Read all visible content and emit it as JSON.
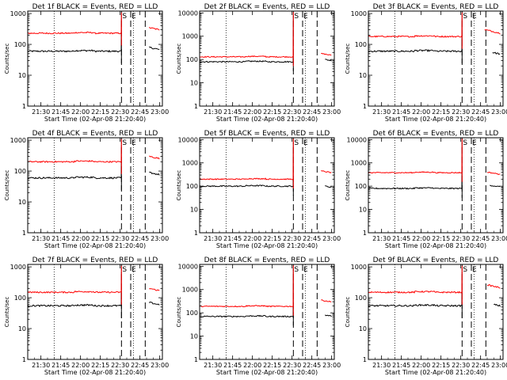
{
  "chart_data": {
    "type": "line",
    "panel_layout": "3x3 grid",
    "y_scale": "log",
    "ylabel": "Counts/sec",
    "xlabel": "Start Time (02-Apr-08 21:20:40)",
    "x_ticks": [
      "21:30",
      "21:45",
      "22:00",
      "22:15",
      "22:30",
      "22:45",
      "23:00"
    ],
    "colors": {
      "events": "#000000",
      "lld": "#ff0000",
      "axes": "#000000"
    },
    "markers": {
      "S": "22:31",
      "E": "22:38"
    },
    "panels": [
      {
        "title": "Det 1f BLACK = Events, RED = LLD",
        "y_ticks": [
          "1",
          "10",
          "100",
          "1000"
        ],
        "ylim": [
          1,
          1200
        ],
        "x_ticks": [
          "21:30",
          "21:45",
          "22:00",
          "22:15",
          "22:30",
          "22:45",
          "23:00"
        ],
        "events_level": 60,
        "lld_level": 230,
        "events_after": {
          "start": "22:52",
          "value": 80
        },
        "lld_after": {
          "start": "22:52",
          "value": 350
        }
      },
      {
        "title": "Det 2f BLACK = Events, RED = LLD",
        "y_ticks": [
          "1",
          "10",
          "100",
          "1000",
          "10000"
        ],
        "ylim": [
          1,
          12000
        ],
        "x_ticks": [
          "21:30",
          "21:45",
          "22:00",
          "22:15",
          "22:30",
          "22:45",
          "23:00"
        ],
        "events_level": 80,
        "lld_level": 130,
        "events_after": {
          "start": "22:55",
          "value": 100
        },
        "lld_after": {
          "start": "22:52",
          "value": 180
        }
      },
      {
        "title": "Det 3f BLACK = Events, RED = LLD",
        "y_ticks": [
          "1",
          "10",
          "100",
          "1000"
        ],
        "ylim": [
          1,
          1200
        ],
        "x_ticks": [
          "21:30",
          "21:45",
          "22:00",
          "22:15",
          "22:30",
          "22:45",
          "23:00"
        ],
        "events_level": 60,
        "lld_level": 180,
        "events_after": {
          "start": "22:54",
          "value": 55
        },
        "lld_after": {
          "start": "22:48",
          "value": 300
        }
      },
      {
        "title": "Det 4f BLACK = Events, RED = LLD",
        "y_ticks": [
          "1",
          "10",
          "100",
          "1000"
        ],
        "ylim": [
          1,
          1200
        ],
        "x_ticks": [
          "21:30",
          "21:45",
          "22:00",
          "22:15",
          "22:30",
          "22:45",
          "23:00"
        ],
        "events_level": 60,
        "lld_level": 200,
        "events_after": {
          "start": "22:52",
          "value": 90
        },
        "lld_after": {
          "start": "22:52",
          "value": 300
        }
      },
      {
        "title": "Det 5f BLACK = Events, RED = LLD",
        "y_ticks": [
          "1",
          "10",
          "100",
          "1000",
          "10000"
        ],
        "ylim": [
          1,
          12000
        ],
        "x_ticks": [
          "21:30",
          "21:45",
          "22:00",
          "22:15",
          "22:30",
          "22:45",
          "23:00"
        ],
        "events_level": 100,
        "lld_level": 200,
        "events_after": {
          "start": "22:55",
          "value": 100
        },
        "lld_after": {
          "start": "22:52",
          "value": 450
        }
      },
      {
        "title": "Det 6f BLACK = Events, RED = LLD",
        "y_ticks": [
          "1",
          "10",
          "100",
          "1000",
          "10000"
        ],
        "ylim": [
          1,
          12000
        ],
        "x_ticks": [
          "21:30",
          "21:45",
          "22:00",
          "22:15",
          "22:30",
          "22:45",
          "23:00"
        ],
        "events_level": 80,
        "lld_level": 380,
        "events_after": {
          "start": "22:52",
          "value": 110
        },
        "lld_after": {
          "start": "22:50",
          "value": 400
        }
      },
      {
        "title": "Det 7f BLACK = Events, RED = LLD",
        "y_ticks": [
          "1",
          "10",
          "100",
          "1000"
        ],
        "ylim": [
          1,
          1200
        ],
        "x_ticks": [
          "21:30",
          "21:45",
          "22:00",
          "22:15",
          "22:30",
          "22:45",
          "23:00"
        ],
        "events_level": 55,
        "lld_level": 150,
        "events_after": {
          "start": "22:52",
          "value": 70
        },
        "lld_after": {
          "start": "22:52",
          "value": 200
        }
      },
      {
        "title": "Det 8f BLACK = Events, RED = LLD",
        "y_ticks": [
          "1",
          "10",
          "100",
          "1000",
          "10000"
        ],
        "ylim": [
          1,
          12000
        ],
        "x_ticks": [
          "21:30",
          "21:45",
          "22:00",
          "22:15",
          "22:30",
          "22:45",
          "23:00"
        ],
        "events_level": 70,
        "lld_level": 190,
        "events_after": {
          "start": "22:55",
          "value": 80
        },
        "lld_after": {
          "start": "22:52",
          "value": 350
        }
      },
      {
        "title": "Det 9f BLACK = Events, RED = LLD",
        "y_ticks": [
          "1",
          "10",
          "100",
          "1000"
        ],
        "ylim": [
          1,
          1200
        ],
        "x_ticks": [
          "21:30",
          "21:45",
          "22:00",
          "22:15",
          "22:30",
          "22:45",
          "23:00"
        ],
        "events_level": 55,
        "lld_level": 150,
        "events_after": {
          "start": "22:55",
          "value": 60
        },
        "lld_after": {
          "start": "22:50",
          "value": 260
        }
      }
    ]
  }
}
